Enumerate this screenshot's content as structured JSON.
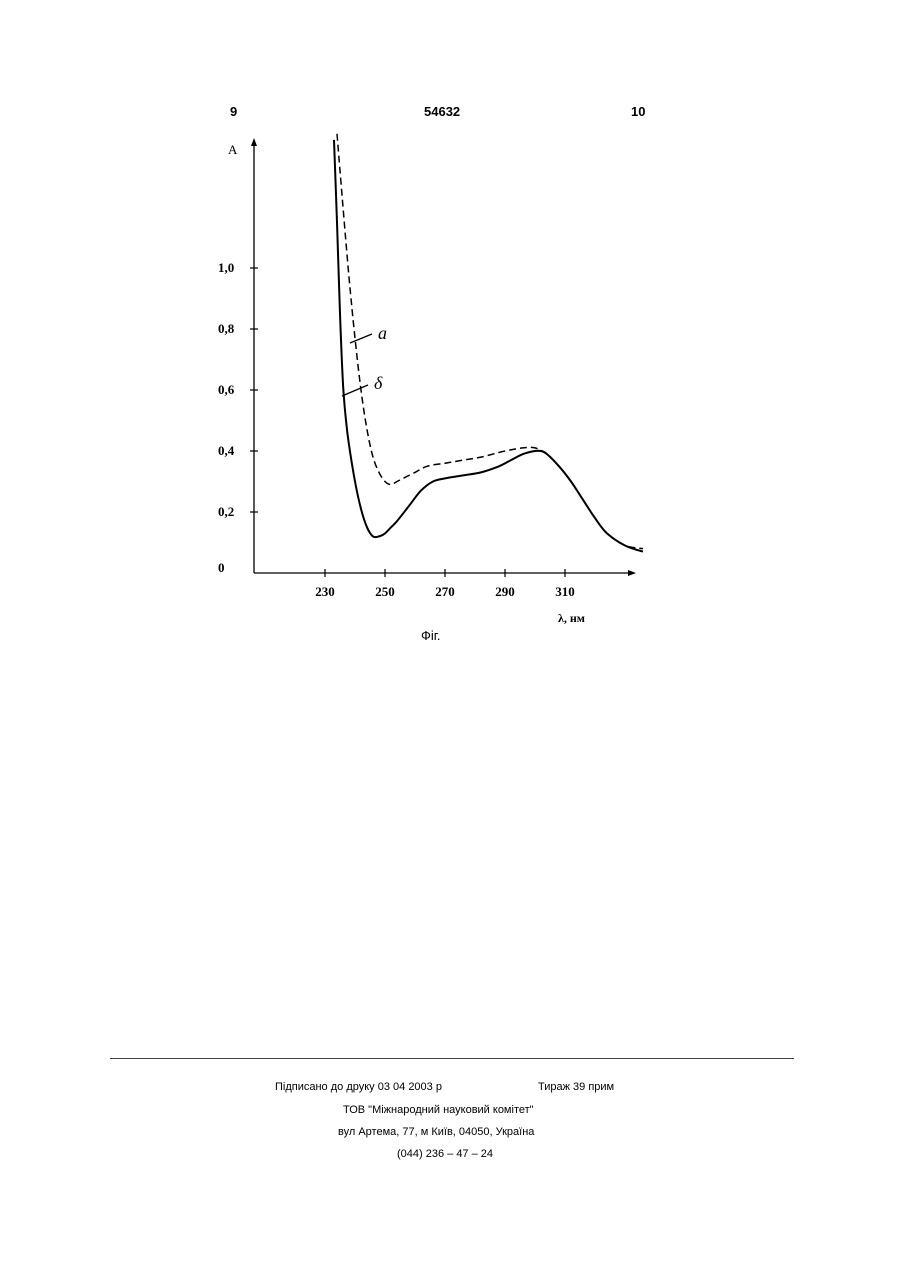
{
  "header": {
    "page_left": "9",
    "patent_number": "54632",
    "page_right": "10"
  },
  "chart_data": {
    "type": "line",
    "ylabel": "A",
    "xlabel": "λ, нм",
    "xlim": [
      208,
      340
    ],
    "ylim": [
      0,
      1.45
    ],
    "x_ticks": [
      230,
      250,
      270,
      290,
      310
    ],
    "y_ticks": [
      0,
      0.2,
      0.4,
      0.6,
      0.8,
      1.0
    ],
    "y_tick_labels": [
      "0",
      "0,2",
      "0,4",
      "0,6",
      "0,8",
      "1,0"
    ],
    "grid": false,
    "series": [
      {
        "name": "а",
        "style": "dashed",
        "x": [
          234,
          236,
          238,
          240,
          242,
          244,
          246,
          248,
          250,
          252,
          254,
          256,
          260,
          264,
          270,
          276,
          282,
          290,
          296,
          300,
          304,
          308,
          312,
          316,
          320,
          324,
          330,
          336
        ],
        "y": [
          1.44,
          1.2,
          0.97,
          0.77,
          0.6,
          0.47,
          0.38,
          0.33,
          0.3,
          0.29,
          0.3,
          0.31,
          0.33,
          0.35,
          0.36,
          0.37,
          0.38,
          0.4,
          0.41,
          0.41,
          0.39,
          0.35,
          0.3,
          0.24,
          0.18,
          0.13,
          0.09,
          0.08
        ]
      },
      {
        "name": "б",
        "style": "solid",
        "x": [
          233,
          234,
          235,
          236,
          237,
          238,
          240,
          242,
          244,
          246,
          248,
          250,
          252,
          254,
          258,
          262,
          266,
          270,
          276,
          282,
          288,
          292,
          296,
          300,
          302,
          304,
          308,
          312,
          316,
          320,
          324,
          330,
          336
        ],
        "y": [
          1.42,
          1.15,
          0.85,
          0.62,
          0.5,
          0.42,
          0.3,
          0.21,
          0.15,
          0.12,
          0.12,
          0.13,
          0.15,
          0.17,
          0.22,
          0.27,
          0.3,
          0.31,
          0.32,
          0.33,
          0.35,
          0.37,
          0.39,
          0.4,
          0.4,
          0.39,
          0.35,
          0.3,
          0.24,
          0.18,
          0.13,
          0.09,
          0.07
        ]
      }
    ],
    "annotations": [
      "а",
      "δ"
    ]
  },
  "caption": "Фіг.",
  "footer": {
    "signed": "Підписано до друку 03 04 2003 р",
    "print_run": "Тираж 39 прим",
    "organization": "ТОВ \"Міжнародний науковий комітет\"",
    "address": "вул  Артема, 77, м  Київ, 04050, Україна",
    "phone": "(044) 236 – 47 – 24"
  }
}
